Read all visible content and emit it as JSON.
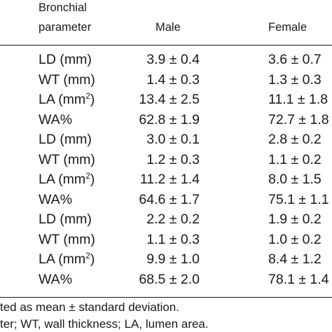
{
  "header": {
    "param_line1": "Bronchial",
    "param_line2": "parameter",
    "male": "Male",
    "female": "Female"
  },
  "rows": [
    {
      "param": "LD (mm)",
      "sup": "",
      "male": "3.9 ± 0.4",
      "female": "3.6 ± 0.7"
    },
    {
      "param": "WT (mm)",
      "sup": "",
      "male": "1.4 ± 0.3",
      "female": "1.3 ± 0.3"
    },
    {
      "param": "LA (mm",
      "sup": "2",
      "close": ")",
      "male": "13.4 ± 2.5",
      "female": "11.1 ± 1.8"
    },
    {
      "param": "WA%",
      "sup": "",
      "male": "62.8 ± 1.9",
      "female": "72.7 ± 1.8"
    },
    {
      "param": "LD (mm)",
      "sup": "",
      "male": "3.0 ± 0.1",
      "female": "2.8 ± 0.2"
    },
    {
      "param": "WT (mm)",
      "sup": "",
      "male": "1.2 ± 0.3",
      "female": "1.1 ± 0.2"
    },
    {
      "param": "LA (mm",
      "sup": "2",
      "close": ")",
      "male": "11.2 ± 1.4",
      "female": "8.0 ± 1.5"
    },
    {
      "param": "WA%",
      "sup": "",
      "male": "64.6 ± 1.7",
      "female": "75.1 ± 1.1"
    },
    {
      "param": "LD (mm)",
      "sup": "",
      "male": "2.2 ± 0.2",
      "female": "1.9 ± 0.2"
    },
    {
      "param": "WT (mm)",
      "sup": "",
      "male": "1.1 ± 0.3",
      "female": "1.0 ± 0.2"
    },
    {
      "param": "LA (mm",
      "sup": "2",
      "close": ")",
      "male": "9.9 ± 1.0",
      "female": "8.4 ± 1.2"
    },
    {
      "param": "WA%",
      "sup": "",
      "male": "68.5 ± 2.0",
      "female": "78.1 ± 1.4"
    }
  ],
  "footnotes": {
    "line1": "ted as mean ± standard deviation.",
    "line2": "ter; WT, wall thickness; LA, lumen area."
  }
}
